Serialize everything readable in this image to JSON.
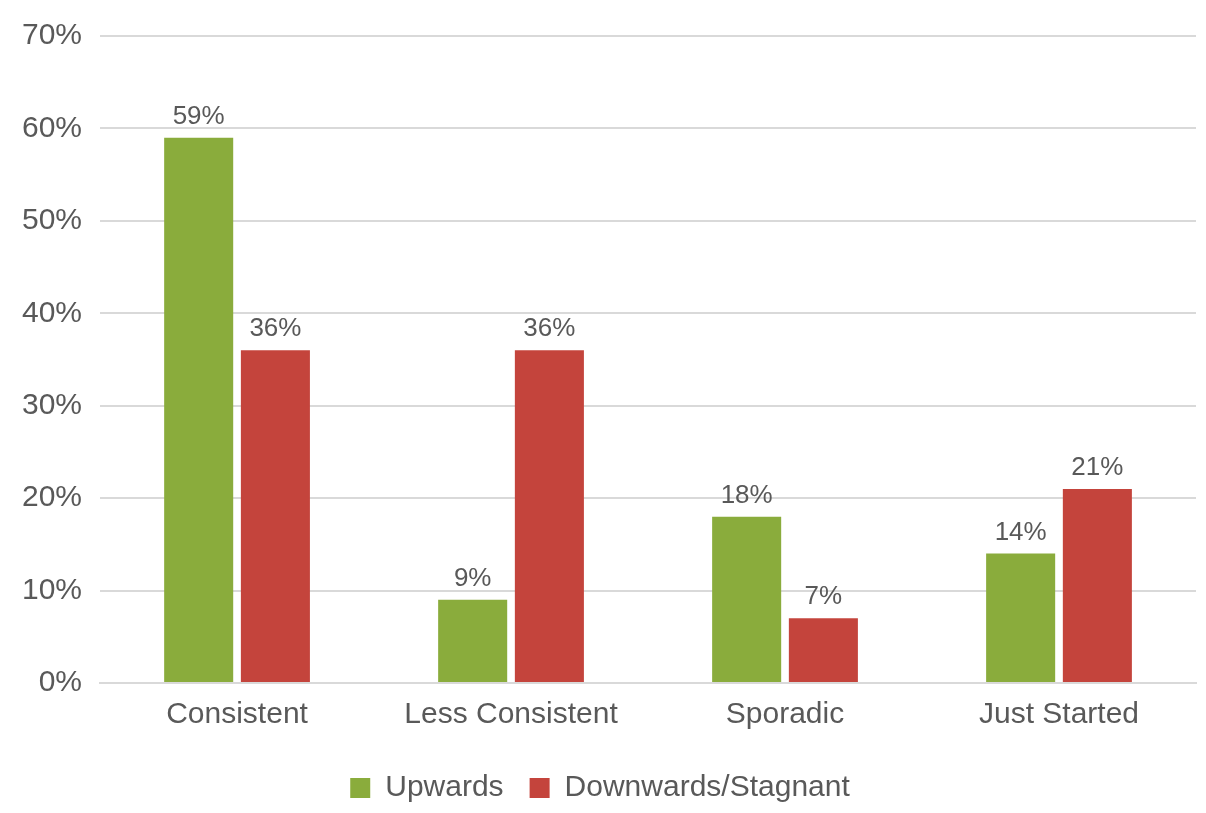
{
  "chart_data": {
    "type": "bar",
    "categories": [
      "Consistent",
      "Less Consistent",
      "Sporadic",
      "Just Started"
    ],
    "series": [
      {
        "name": "Upwards",
        "color": "#8aac3c",
        "values": [
          59,
          9,
          18,
          14
        ],
        "value_labels": [
          "59%",
          "9%",
          "18%",
          "14%"
        ]
      },
      {
        "name": "Downwards/Stagnant",
        "color": "#c4443c",
        "values": [
          36,
          36,
          7,
          21
        ],
        "value_labels": [
          "36%",
          "36%",
          "7%",
          "21%"
        ]
      }
    ],
    "ylim": [
      0,
      70
    ],
    "yticks": [
      {
        "value": 0,
        "label": "0%"
      },
      {
        "value": 10,
        "label": "10%"
      },
      {
        "value": 20,
        "label": "20%"
      },
      {
        "value": 30,
        "label": "30%"
      },
      {
        "value": 40,
        "label": "40%"
      },
      {
        "value": 50,
        "label": "50%"
      },
      {
        "value": 60,
        "label": "60%"
      },
      {
        "value": 70,
        "label": "70%"
      }
    ],
    "grid": "y",
    "legend": "bottom"
  }
}
